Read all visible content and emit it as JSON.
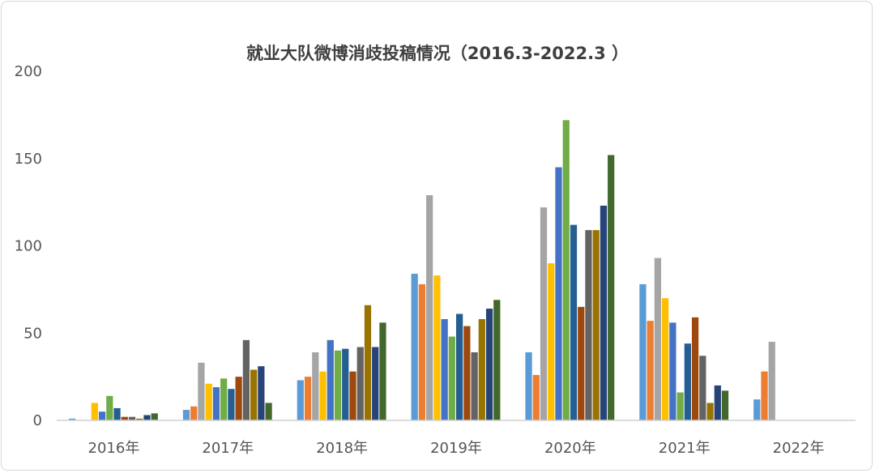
{
  "chart_data": {
    "type": "bar",
    "title": "就业大队微博消歧投稿情况（2016.3-2022.3 ）",
    "categories": [
      "2016年",
      "2017年",
      "2018年",
      "2019年",
      "2020年",
      "2021年",
      "2022年"
    ],
    "ylim": [
      0,
      200
    ],
    "yticks": [
      0,
      50,
      100,
      150,
      200
    ],
    "grid": false,
    "legend": "none",
    "colors": [
      "#5b9bd5",
      "#ed7d31",
      "#a5a5a5",
      "#ffc000",
      "#4472c4",
      "#70ad47",
      "#255e91",
      "#9e480e",
      "#636363",
      "#997300",
      "#264478",
      "#43682b"
    ],
    "series": [
      {
        "values": [
          1,
          6,
          23,
          84,
          39,
          78,
          12
        ]
      },
      {
        "values": [
          0,
          8,
          25,
          78,
          26,
          57,
          28
        ]
      },
      {
        "values": [
          0,
          33,
          39,
          129,
          122,
          93,
          45
        ]
      },
      {
        "values": [
          10,
          21,
          28,
          83,
          90,
          70,
          null
        ]
      },
      {
        "values": [
          5,
          19,
          46,
          58,
          145,
          56,
          null
        ]
      },
      {
        "values": [
          14,
          24,
          40,
          48,
          172,
          16,
          null
        ]
      },
      {
        "values": [
          7,
          18,
          41,
          61,
          112,
          44,
          null
        ]
      },
      {
        "values": [
          2,
          25,
          28,
          54,
          65,
          59,
          null
        ]
      },
      {
        "values": [
          2,
          46,
          42,
          39,
          109,
          37,
          null
        ]
      },
      {
        "values": [
          1,
          29,
          66,
          58,
          109,
          10,
          null
        ]
      },
      {
        "values": [
          3,
          31,
          42,
          64,
          123,
          20,
          null
        ]
      },
      {
        "values": [
          4,
          10,
          56,
          69,
          152,
          17,
          null
        ]
      }
    ]
  }
}
